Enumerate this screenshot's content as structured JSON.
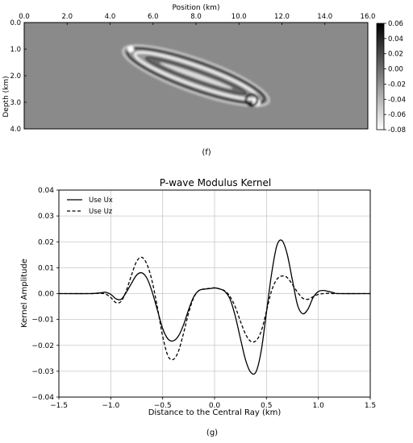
{
  "chart_data": [
    {
      "type": "heatmap",
      "panel_label": "(f)",
      "title": "",
      "xlabel": "Position (km)",
      "ylabel": "Depth (km)",
      "xlim": [
        0.0,
        16.0
      ],
      "ylim": [
        4.0,
        0.0
      ],
      "x_ticks": [
        "0.0",
        "2.0",
        "4.0",
        "6.0",
        "8.0",
        "10.0",
        "12.0",
        "14.0",
        "16.0"
      ],
      "y_ticks": [
        "0.0",
        "1.0",
        "2.0",
        "3.0",
        "4.0"
      ],
      "colorbar": {
        "range": [
          -0.08,
          0.06
        ],
        "ticks": [
          "0.06",
          "0.04",
          "0.02",
          "0.00",
          "-0.02",
          "-0.04",
          "-0.06",
          "-0.08"
        ],
        "colormap": "gray"
      },
      "feature": {
        "description": "elongated kernel anomaly between shot and receiver",
        "start": [
          5.0,
          1.0
        ],
        "end": [
          11.0,
          3.0
        ],
        "background_value": 0.0
      }
    },
    {
      "type": "line",
      "panel_label": "(g)",
      "title": "P-wave Modulus Kernel",
      "xlabel": "Distance to the Central Ray (km)",
      "ylabel": "Kernel Amplitude",
      "xlim": [
        -1.5,
        1.5
      ],
      "ylim": [
        -0.04,
        0.04
      ],
      "grid": true,
      "legend": "top-left",
      "x_ticks": [
        "−1.5",
        "−1.0",
        "−0.5",
        "0.0",
        "0.5",
        "1.0",
        "1.5"
      ],
      "y_ticks": [
        "0.04",
        "0.03",
        "0.02",
        "0.01",
        "0.00",
        "−0.01",
        "−0.02",
        "−0.03",
        "−0.04"
      ],
      "series": [
        {
          "name": "Use Ux",
          "style": "solid",
          "x": [
            -1.5,
            -1.2,
            -1.1,
            -1.05,
            -1.0,
            -0.95,
            -0.9,
            -0.85,
            -0.8,
            -0.75,
            -0.7,
            -0.65,
            -0.6,
            -0.55,
            -0.5,
            -0.45,
            -0.4,
            -0.35,
            -0.3,
            -0.25,
            -0.2,
            -0.15,
            -0.1,
            -0.05,
            0.0,
            0.05,
            0.1,
            0.15,
            0.2,
            0.25,
            0.3,
            0.35,
            0.4,
            0.45,
            0.5,
            0.55,
            0.6,
            0.65,
            0.7,
            0.75,
            0.8,
            0.85,
            0.9,
            0.95,
            1.0,
            1.05,
            1.1,
            1.15,
            1.2,
            1.5
          ],
          "y": [
            0.0,
            0.0,
            0.0003,
            0.0005,
            -0.0003,
            -0.002,
            -0.0022,
            0.0005,
            0.004,
            0.0072,
            0.008,
            0.0058,
            0.0005,
            -0.0065,
            -0.0135,
            -0.0175,
            -0.0183,
            -0.0165,
            -0.0122,
            -0.0062,
            -0.0012,
            0.0012,
            0.0017,
            0.0019,
            0.0022,
            0.0018,
            0.0008,
            -0.0022,
            -0.0088,
            -0.0175,
            -0.0258,
            -0.0305,
            -0.0302,
            -0.022,
            -0.0072,
            0.0078,
            0.0185,
            0.0205,
            0.0152,
            0.0052,
            -0.0045,
            -0.0078,
            -0.006,
            -0.0015,
            0.0008,
            0.0012,
            0.0008,
            0.0003,
            0.0,
            0.0
          ]
        },
        {
          "name": "Use Uz",
          "style": "dashed",
          "x": [
            -1.5,
            -1.2,
            -1.1,
            -1.05,
            -1.0,
            -0.95,
            -0.9,
            -0.85,
            -0.8,
            -0.75,
            -0.7,
            -0.65,
            -0.6,
            -0.55,
            -0.5,
            -0.45,
            -0.4,
            -0.35,
            -0.3,
            -0.25,
            -0.2,
            -0.15,
            -0.1,
            -0.05,
            0.0,
            0.05,
            0.1,
            0.15,
            0.2,
            0.25,
            0.3,
            0.35,
            0.4,
            0.45,
            0.5,
            0.55,
            0.6,
            0.65,
            0.7,
            0.75,
            0.8,
            0.85,
            0.9,
            0.95,
            1.0,
            1.05,
            1.1,
            1.15,
            1.2,
            1.5
          ],
          "y": [
            0.0,
            0.0,
            0.0001,
            -0.0002,
            -0.0015,
            -0.0035,
            -0.003,
            0.0012,
            0.0072,
            0.0125,
            0.014,
            0.0112,
            0.0045,
            -0.0055,
            -0.0165,
            -0.024,
            -0.0255,
            -0.0225,
            -0.0155,
            -0.0075,
            -0.0015,
            0.0012,
            0.0018,
            0.002,
            0.0022,
            0.0018,
            0.001,
            -0.0012,
            -0.0052,
            -0.0108,
            -0.0158,
            -0.0185,
            -0.0182,
            -0.0145,
            -0.0068,
            0.0012,
            0.0055,
            0.0068,
            0.0062,
            0.0035,
            0.0005,
            -0.0018,
            -0.0022,
            -0.0012,
            -0.0003,
            0.0,
            0.0001,
            0.0,
            0.0,
            0.0
          ]
        }
      ]
    }
  ]
}
